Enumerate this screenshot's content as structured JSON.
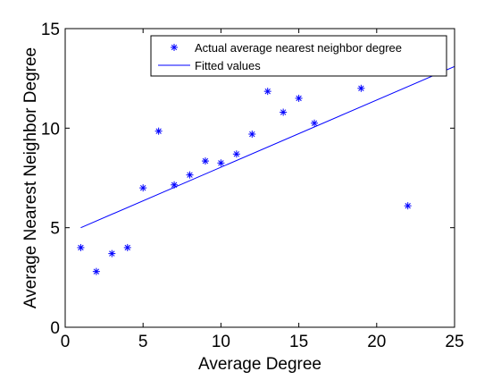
{
  "chart_data": {
    "type": "scatter",
    "title": "",
    "xlabel": "Average Degree",
    "ylabel": "Average Nearest Neighbor Degree",
    "xlim": [
      0,
      25
    ],
    "ylim": [
      0,
      15
    ],
    "xticks": [
      0,
      5,
      10,
      15,
      20,
      25
    ],
    "yticks": [
      0,
      5,
      10,
      15
    ],
    "grid": false,
    "legend_position": "top-right",
    "series": [
      {
        "name": "Actual average nearest neighbor degree",
        "kind": "scatter",
        "marker": "*",
        "color": "#0000ff",
        "points": [
          {
            "x": 1,
            "y": 4.0
          },
          {
            "x": 2,
            "y": 2.8
          },
          {
            "x": 3,
            "y": 3.7
          },
          {
            "x": 4,
            "y": 4.0
          },
          {
            "x": 5,
            "y": 7.0
          },
          {
            "x": 6,
            "y": 9.85
          },
          {
            "x": 7,
            "y": 7.15
          },
          {
            "x": 8,
            "y": 7.65
          },
          {
            "x": 9,
            "y": 8.35
          },
          {
            "x": 10,
            "y": 8.25
          },
          {
            "x": 11,
            "y": 8.7
          },
          {
            "x": 12,
            "y": 9.7
          },
          {
            "x": 13,
            "y": 11.85
          },
          {
            "x": 14,
            "y": 10.8
          },
          {
            "x": 15,
            "y": 11.5
          },
          {
            "x": 16,
            "y": 10.25
          },
          {
            "x": 19,
            "y": 12.0
          },
          {
            "x": 22,
            "y": 6.1
          }
        ]
      },
      {
        "name": "Fitted values",
        "kind": "line",
        "color": "#0000ff",
        "points": [
          {
            "x": 1,
            "y": 5.0
          },
          {
            "x": 25,
            "y": 13.1
          }
        ]
      }
    ]
  }
}
